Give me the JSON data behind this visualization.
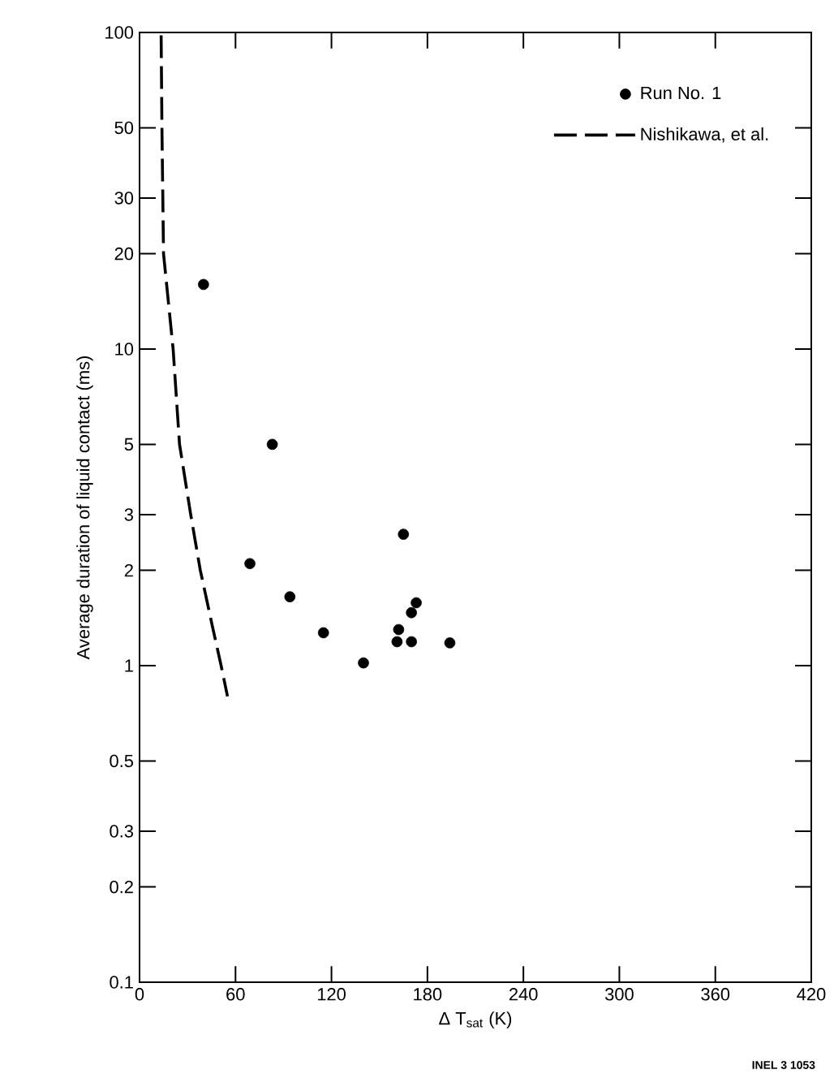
{
  "chart_data": {
    "type": "scatter",
    "xlabel": "Δ T$_{sat}$ (K)",
    "ylabel": "Average duration of liquid contact (ms)",
    "xlim": [
      0,
      420
    ],
    "xticks": [
      0,
      60,
      120,
      180,
      240,
      300,
      360,
      420
    ],
    "ylim": [
      0.1,
      100
    ],
    "yticks": [
      0.1,
      0.2,
      0.3,
      0.5,
      1,
      2,
      3,
      5,
      10,
      20,
      30,
      50,
      100
    ],
    "log": "y",
    "marker": "circle",
    "legend": "top right",
    "grid": false,
    "annotations": [
      "INEL 3 1053"
    ],
    "series": [
      {
        "name": "Run No. 1",
        "color": "#000000",
        "x": [
          40,
          83,
          69,
          94,
          115,
          140,
          165,
          162,
          161,
          170,
          170,
          173,
          194
        ],
        "values": [
          16,
          5,
          2.1,
          1.65,
          1.27,
          1.02,
          2.6,
          1.3,
          1.19,
          1.19,
          1.47,
          1.58,
          1.18
        ]
      },
      {
        "name": "Nishikawa, et al.",
        "type": "line",
        "marker": "none",
        "line_style": "dashed",
        "color": "#000000",
        "x": [
          13.5,
          14,
          15,
          21,
          25,
          32,
          38,
          46,
          51,
          55
        ],
        "values": [
          98,
          50,
          20,
          10,
          5,
          3,
          2,
          1.3,
          1,
          0.8
        ]
      }
    ]
  }
}
